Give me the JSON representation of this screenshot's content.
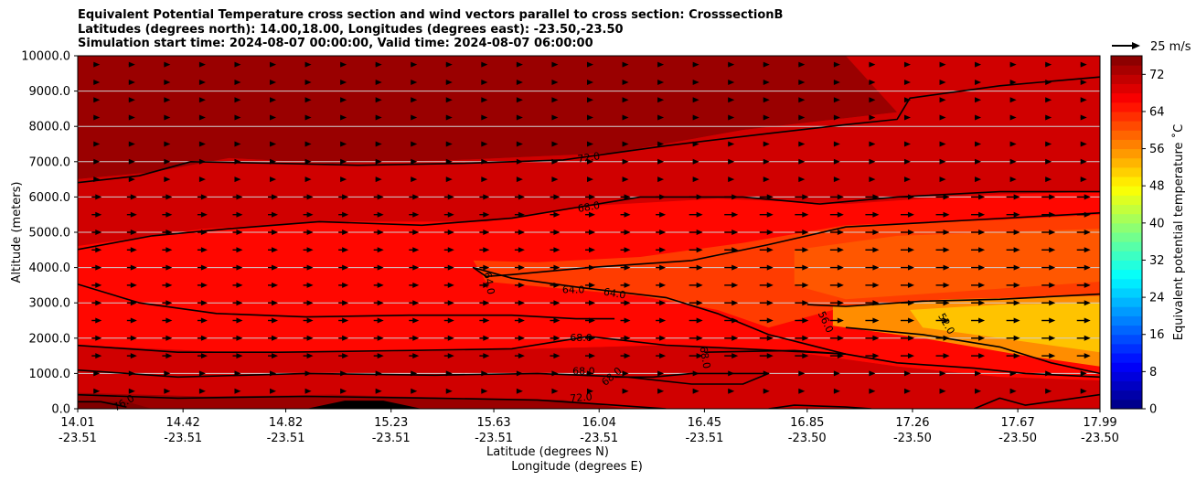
{
  "chart_data": {
    "type": "heatmap",
    "title_lines": [
      "Equivalent Potential Temperature cross section and wind vectors parallel to cross section: CrosssectionB",
      "Latitudes (degrees north): 14.00,18.00, Longitudes (degrees east): -23.50,-23.50",
      "Simulation start time: 2024-08-07 00:00:00, Valid time: 2024-08-07 06:00:00"
    ],
    "ylabel": "Altitude (meters)",
    "xlabel_lines": [
      "Latitude (degrees N)",
      "Longitude (degrees E)"
    ],
    "colorbar_label": "Equivalent potential temperature ˚C",
    "ylim": [
      0,
      10000
    ],
    "yticks": [
      "0.0",
      "1000.0",
      "2000.0",
      "3000.0",
      "4000.0",
      "5000.0",
      "6000.0",
      "7000.0",
      "8000.0",
      "9000.0",
      "10000.0"
    ],
    "xticks": [
      {
        "lat": "14.01",
        "lon": "-23.51"
      },
      {
        "lat": "14.42",
        "lon": "-23.51"
      },
      {
        "lat": "14.82",
        "lon": "-23.51"
      },
      {
        "lat": "15.23",
        "lon": "-23.51"
      },
      {
        "lat": "15.63",
        "lon": "-23.51"
      },
      {
        "lat": "16.04",
        "lon": "-23.51"
      },
      {
        "lat": "16.45",
        "lon": "-23.51"
      },
      {
        "lat": "16.85",
        "lon": "-23.50"
      },
      {
        "lat": "17.26",
        "lon": "-23.50"
      },
      {
        "lat": "17.67",
        "lon": "-23.50"
      },
      {
        "lat": "17.99",
        "lon": "-23.50"
      }
    ],
    "colorbar_range": [
      0,
      76
    ],
    "colorbar_ticks": [
      "0",
      "8",
      "16",
      "24",
      "32",
      "40",
      "48",
      "56",
      "64",
      "72"
    ],
    "grid": "horizontal",
    "wind_reference": "25 m/s",
    "contour_labels": [
      {
        "text": "72.0",
        "lat": 16.0,
        "alt": 7100,
        "rot": -8
      },
      {
        "text": "68.0",
        "lat": 16.0,
        "alt": 5700,
        "rot": -10
      },
      {
        "text": "64.0",
        "lat": 15.61,
        "alt": 3550,
        "rot": 80
      },
      {
        "text": "64.0",
        "lat": 15.94,
        "alt": 3350,
        "rot": 0
      },
      {
        "text": "64.0",
        "lat": 16.1,
        "alt": 3250,
        "rot": 10
      },
      {
        "text": "68.0",
        "lat": 15.97,
        "alt": 2000,
        "rot": 0
      },
      {
        "text": "68.0",
        "lat": 16.45,
        "alt": 1450,
        "rot": 80
      },
      {
        "text": "56.0",
        "lat": 16.92,
        "alt": 2450,
        "rot": 65
      },
      {
        "text": "52.0",
        "lat": 17.39,
        "alt": 2400,
        "rot": 60
      },
      {
        "text": "68.0",
        "lat": 15.98,
        "alt": 1050,
        "rot": 0
      },
      {
        "text": "68.0",
        "lat": 16.09,
        "alt": 900,
        "rot": -40
      },
      {
        "text": "72.0",
        "lat": 15.97,
        "alt": 300,
        "rot": -5
      },
      {
        "text": "76.0",
        "lat": 14.19,
        "alt": 150,
        "rot": -30
      }
    ],
    "contour_lines": [
      {
        "level": 72,
        "points": [
          [
            14.0,
            6400
          ],
          [
            14.25,
            6600
          ],
          [
            14.45,
            7000
          ],
          [
            14.8,
            6950
          ],
          [
            15.1,
            6900
          ],
          [
            15.5,
            6950
          ],
          [
            15.9,
            7050
          ],
          [
            16.3,
            7450
          ],
          [
            16.7,
            7800
          ],
          [
            17.0,
            8050
          ],
          [
            17.2,
            8200
          ],
          [
            17.25,
            8800
          ],
          [
            17.6,
            9150
          ],
          [
            17.99,
            9400
          ]
        ]
      },
      {
        "level": 68,
        "points": [
          [
            14.0,
            4500
          ],
          [
            14.3,
            4900
          ],
          [
            14.6,
            5100
          ],
          [
            14.95,
            5300
          ],
          [
            15.35,
            5200
          ],
          [
            15.7,
            5400
          ],
          [
            15.95,
            5700
          ],
          [
            16.2,
            6000
          ],
          [
            16.6,
            6000
          ],
          [
            16.9,
            5800
          ],
          [
            17.2,
            6000
          ],
          [
            17.6,
            6150
          ],
          [
            17.99,
            6150
          ]
        ]
      },
      {
        "level": 64,
        "points": [
          [
            17.99,
            5550
          ],
          [
            17.5,
            5350
          ],
          [
            17.0,
            5150
          ],
          [
            16.7,
            4650
          ],
          [
            16.4,
            4200
          ],
          [
            16.0,
            4000
          ],
          [
            15.7,
            3800
          ],
          [
            15.6,
            3750
          ],
          [
            15.55,
            4000
          ],
          [
            15.7,
            3700
          ],
          [
            15.95,
            3450
          ],
          [
            16.3,
            3150
          ],
          [
            16.5,
            2700
          ],
          [
            16.7,
            2100
          ],
          [
            17.0,
            1550
          ],
          [
            17.2,
            1300
          ],
          [
            17.5,
            1150
          ],
          [
            17.7,
            1000
          ],
          [
            17.99,
            900
          ]
        ]
      },
      {
        "level": 64,
        "points": [
          [
            14.0,
            3550
          ],
          [
            14.25,
            3000
          ],
          [
            14.55,
            2700
          ],
          [
            14.9,
            2600
          ],
          [
            15.3,
            2650
          ],
          [
            15.7,
            2650
          ],
          [
            15.95,
            2550
          ],
          [
            16.1,
            2550
          ]
        ]
      },
      {
        "level": 56,
        "points": [
          [
            17.99,
            3250
          ],
          [
            17.6,
            3100
          ],
          [
            17.3,
            3050
          ],
          [
            17.0,
            2900
          ],
          [
            16.85,
            2950
          ]
        ]
      },
      {
        "level": 56,
        "points": [
          [
            17.0,
            2300
          ],
          [
            17.3,
            2100
          ],
          [
            17.6,
            1750
          ],
          [
            17.8,
            1300
          ],
          [
            17.99,
            1000
          ]
        ]
      },
      {
        "level": 68,
        "points": [
          [
            14.0,
            1800
          ],
          [
            14.4,
            1600
          ],
          [
            14.8,
            1600
          ],
          [
            15.3,
            1650
          ],
          [
            15.7,
            1700
          ],
          [
            16.0,
            2050
          ],
          [
            16.3,
            1800
          ],
          [
            16.6,
            1700
          ],
          [
            17.0,
            1550
          ]
        ]
      },
      {
        "level": 68,
        "points": [
          [
            16.45,
            1600
          ],
          [
            16.8,
            1650
          ],
          [
            17.0,
            1550
          ]
        ]
      },
      {
        "level": 68,
        "points": [
          [
            14.0,
            1100
          ],
          [
            14.4,
            900
          ],
          [
            14.9,
            1000
          ],
          [
            15.4,
            950
          ],
          [
            15.8,
            1000
          ],
          [
            16.15,
            900
          ],
          [
            16.4,
            700
          ],
          [
            16.6,
            700
          ],
          [
            16.7,
            1000
          ],
          [
            16.4,
            1000
          ],
          [
            16.25,
            900
          ],
          [
            16.1,
            900
          ]
        ]
      },
      {
        "level": 72,
        "points": [
          [
            14.0,
            400
          ],
          [
            14.4,
            300
          ],
          [
            14.9,
            350
          ],
          [
            15.4,
            300
          ],
          [
            15.8,
            250
          ],
          [
            16.1,
            100
          ],
          [
            16.3,
            0
          ]
        ]
      },
      {
        "level": 76,
        "points": [
          [
            14.0,
            200
          ],
          [
            14.1,
            200
          ],
          [
            14.2,
            50
          ]
        ]
      },
      {
        "level": 72,
        "points": [
          [
            16.7,
            0
          ],
          [
            16.8,
            100
          ],
          [
            17.0,
            50
          ],
          [
            17.1,
            0
          ]
        ]
      },
      {
        "level": 72,
        "points": [
          [
            17.5,
            0
          ],
          [
            17.6,
            300
          ],
          [
            17.7,
            100
          ],
          [
            17.99,
            400
          ]
        ]
      }
    ],
    "filled_regions": [
      {
        "level": 74,
        "points": [
          [
            14.0,
            10000
          ],
          [
            17.0,
            10000
          ],
          [
            17.1,
            9200
          ],
          [
            17.2,
            8400
          ],
          [
            16.6,
            7900
          ],
          [
            16.1,
            7250
          ],
          [
            15.5,
            7050
          ],
          [
            15.0,
            6950
          ],
          [
            14.6,
            7100
          ],
          [
            14.3,
            6700
          ],
          [
            14.0,
            6500
          ]
        ]
      },
      {
        "level": 70,
        "points": [
          [
            14.0,
            6500
          ],
          [
            14.3,
            6700
          ],
          [
            14.6,
            7100
          ],
          [
            15.0,
            6950
          ],
          [
            15.5,
            7050
          ],
          [
            16.1,
            7250
          ],
          [
            16.6,
            7900
          ],
          [
            17.2,
            8400
          ],
          [
            17.3,
            9000
          ],
          [
            17.99,
            9350
          ],
          [
            17.99,
            6200
          ],
          [
            17.5,
            6100
          ],
          [
            17.0,
            5900
          ],
          [
            16.5,
            6000
          ],
          [
            16.0,
            5800
          ],
          [
            15.6,
            5300
          ],
          [
            15.0,
            5300
          ],
          [
            14.5,
            5100
          ],
          [
            14.0,
            4600
          ]
        ]
      },
      {
        "level": 66,
        "points": [
          [
            14.0,
            4600
          ],
          [
            14.5,
            5100
          ],
          [
            15.0,
            5300
          ],
          [
            15.6,
            5300
          ],
          [
            16.0,
            5750
          ],
          [
            16.5,
            5950
          ],
          [
            17.0,
            5800
          ],
          [
            17.5,
            6050
          ],
          [
            17.99,
            6150
          ],
          [
            17.99,
            800
          ],
          [
            17.6,
            900
          ],
          [
            17.2,
            1200
          ],
          [
            16.8,
            1600
          ],
          [
            16.3,
            1800
          ],
          [
            15.8,
            1700
          ],
          [
            15.2,
            1600
          ],
          [
            14.6,
            1600
          ],
          [
            14.0,
            1800
          ]
        ]
      },
      {
        "level": 62,
        "points": [
          [
            15.55,
            4200
          ],
          [
            15.8,
            4150
          ],
          [
            16.2,
            4300
          ],
          [
            16.6,
            4700
          ],
          [
            17.0,
            5200
          ],
          [
            17.6,
            5350
          ],
          [
            17.99,
            5500
          ],
          [
            17.99,
            3200
          ],
          [
            17.4,
            3000
          ],
          [
            17.0,
            2900
          ],
          [
            16.7,
            2300
          ],
          [
            16.5,
            2800
          ],
          [
            16.2,
            3200
          ],
          [
            15.9,
            3400
          ],
          [
            15.6,
            3600
          ]
        ]
      },
      {
        "level": 60,
        "points": [
          [
            16.8,
            4500
          ],
          [
            17.2,
            4900
          ],
          [
            17.99,
            5100
          ],
          [
            17.99,
            3600
          ],
          [
            17.4,
            3300
          ],
          [
            17.0,
            3100
          ],
          [
            16.8,
            3500
          ]
        ]
      },
      {
        "level": 56,
        "points": [
          [
            16.95,
            2900
          ],
          [
            17.4,
            3100
          ],
          [
            17.99,
            3200
          ],
          [
            17.99,
            1200
          ],
          [
            17.7,
            1500
          ],
          [
            17.3,
            2000
          ],
          [
            16.95,
            2350
          ]
        ]
      },
      {
        "level": 52,
        "points": [
          [
            17.25,
            2800
          ],
          [
            17.6,
            2950
          ],
          [
            17.99,
            3000
          ],
          [
            17.99,
            1600
          ],
          [
            17.6,
            2000
          ],
          [
            17.3,
            2300
          ]
        ]
      },
      {
        "level": 70,
        "points": [
          [
            14.0,
            1800
          ],
          [
            14.6,
            1600
          ],
          [
            15.2,
            1600
          ],
          [
            15.8,
            1700
          ],
          [
            16.3,
            1800
          ],
          [
            16.8,
            1600
          ],
          [
            17.2,
            1200
          ],
          [
            17.6,
            900
          ],
          [
            17.99,
            800
          ],
          [
            17.99,
            0
          ],
          [
            14.0,
            0
          ]
        ]
      },
      {
        "level": 74,
        "points": [
          [
            14.0,
            450
          ],
          [
            14.5,
            350
          ],
          [
            15.0,
            400
          ],
          [
            15.5,
            300
          ],
          [
            15.9,
            250
          ],
          [
            16.15,
            0
          ],
          [
            14.0,
            0
          ]
        ]
      },
      {
        "level": 76,
        "points": [
          [
            14.0,
            200
          ],
          [
            14.2,
            200
          ],
          [
            14.3,
            0
          ],
          [
            14.0,
            0
          ]
        ]
      },
      {
        "level": 0,
        "points": [
          [
            14.9,
            0
          ],
          [
            15.05,
            230
          ],
          [
            15.2,
            230
          ],
          [
            15.35,
            0
          ]
        ]
      }
    ],
    "wind_field": {
      "lat_start": 14.01,
      "lat_end": 17.99,
      "columns": 29,
      "alt_levels": [
        9750,
        9250,
        8750,
        8250,
        7500,
        7000,
        6500,
        6000,
        5500,
        5000,
        4500,
        4000,
        3500,
        3000,
        2500,
        2000,
        1500,
        1000,
        500
      ]
    }
  }
}
